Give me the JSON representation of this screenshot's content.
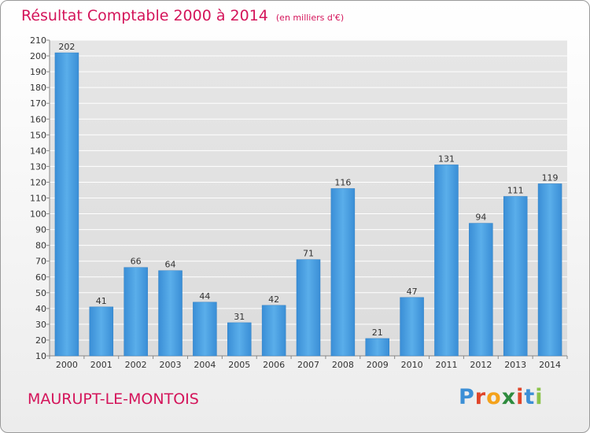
{
  "header": {
    "title": "Résultat Comptable 2000 à 2014",
    "subtitle": "(en milliers d'€)"
  },
  "footer": {
    "commune": "MAURUPT-LE-MONTOIS"
  },
  "logo": {
    "letters": [
      "P",
      "r",
      "o",
      "x",
      "i",
      "t",
      "i"
    ],
    "colors": [
      "#3c8fd6",
      "#e0452a",
      "#f4a21b",
      "#2e8b3e",
      "#e0452a",
      "#3c8fd6",
      "#8bc34a"
    ]
  },
  "colors": {
    "bar": "#4a9fe2",
    "bar_light": "#6db7ee",
    "bar_dark": "#2f7fc4",
    "accent": "#d4145a",
    "plot_bg": "#e4e4e4",
    "grid": "#ffffff"
  },
  "chart_data": {
    "type": "bar",
    "title": "Résultat Comptable 2000 à 2014",
    "xlabel": "",
    "ylabel": "",
    "ylim": [
      10,
      210
    ],
    "yticks": [
      10,
      20,
      30,
      40,
      50,
      60,
      70,
      80,
      90,
      100,
      110,
      120,
      130,
      140,
      150,
      160,
      170,
      180,
      190,
      200,
      210
    ],
    "categories": [
      "2000",
      "2001",
      "2002",
      "2003",
      "2004",
      "2005",
      "2006",
      "2007",
      "2008",
      "2009",
      "2010",
      "2011",
      "2012",
      "2013",
      "2014"
    ],
    "values": [
      202,
      41,
      66,
      64,
      44,
      31,
      42,
      71,
      116,
      21,
      47,
      131,
      94,
      111,
      119
    ]
  }
}
